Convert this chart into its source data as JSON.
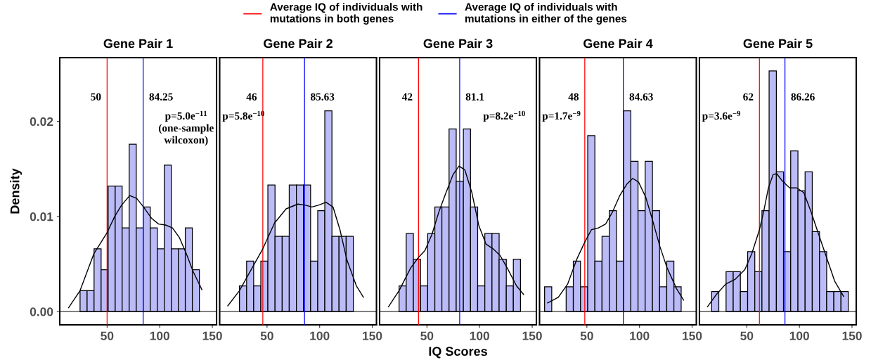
{
  "chart_data": [
    {
      "type": "histogram",
      "title": "Gene Pair 1",
      "ylabel": "Density",
      "legend": "top",
      "color": "#bbbbf7",
      "bins": [
        24.3,
        31.0,
        37.6,
        44.3,
        51.0,
        57.7,
        64.3,
        71.0,
        77.7,
        84.3,
        91.0,
        97.7,
        104.3,
        111.0,
        117.7,
        124.3,
        131.0,
        137.7
      ],
      "values": [
        0.0022,
        0.0022,
        0.0066,
        0.0044,
        0.0132,
        0.0132,
        0.0088,
        0.0176,
        0.0088,
        0.011,
        0.0088,
        0.0066,
        0.0154,
        0.0066,
        0.0066,
        0.0088,
        0.0044
      ],
      "series": [
        {
          "type": "line",
          "color": "#000000",
          "x": [
            13.4,
            24.3,
            37.5,
            50,
            57.2,
            63.8,
            71.5,
            78.1,
            84.6,
            92.3,
            98.9,
            105.5,
            112.1,
            118.6,
            125.2,
            131.8,
            140.1
          ],
          "values": [
            0.0004,
            0.0022,
            0.0061,
            0.0083,
            0.01,
            0.0112,
            0.0122,
            0.0119,
            0.011,
            0.0098,
            0.0092,
            0.0091,
            0.0088,
            0.0078,
            0.0061,
            0.0042,
            0.0023
          ]
        }
      ],
      "ref_lines": [
        {
          "axis": "y",
          "value": 0,
          "color": "#000000"
        },
        {
          "axis": "x",
          "value": 50,
          "color": "#ff0000",
          "label": "Average IQ of individuals with\nmutations in both genes"
        },
        {
          "axis": "x",
          "value": 84.25,
          "color": "#0000ff",
          "label": "Average IQ of individuals with\nmutations in either of the genes"
        }
      ],
      "annotations": [
        "50",
        "84.25",
        "p=5.0e$^{−11}$\n(one-sample\nwilcoxon)"
      ],
      "xlim": [
        5,
        154
      ],
      "ylim": [
        -0.0014,
        0.0267
      ],
      "xticks": [
        50,
        100,
        150
      ],
      "yticks": [
        {
          "value": 0,
          "label": "0.00"
        },
        0.01,
        0.02
      ]
    },
    {
      "type": "histogram",
      "title": "Gene Pair 2",
      "color": "#bbbbf7",
      "tick_labels": "x",
      "bins": [
        23.8,
        30.6,
        37.3,
        44.1,
        50.8,
        57.6,
        64.4,
        71.1,
        77.9,
        84.6,
        91.4,
        98.2,
        104.9,
        111.7,
        118.4,
        125.2,
        132.0
      ],
      "values": [
        0.0027,
        0.0053,
        0.0027,
        0.0053,
        0.0133,
        0.0079,
        0.0079,
        0.0133,
        0.0133,
        0.0133,
        0.0053,
        0.0106,
        0.0211,
        0.0079,
        0.0079,
        0.0079
      ],
      "series": [
        {
          "type": "line",
          "color": "#000000",
          "x": [
            12.7,
            23.8,
            34.9,
            46,
            57.1,
            68.2,
            79.3,
            86,
            92.7,
            99.3,
            106,
            112.7,
            119.3,
            126,
            134.9,
            141.6
          ],
          "values": [
            0.0006,
            0.0022,
            0.0044,
            0.0066,
            0.0093,
            0.0108,
            0.0113,
            0.0112,
            0.011,
            0.0112,
            0.0115,
            0.011,
            0.0086,
            0.0054,
            0.0027,
            0.0015
          ]
        }
      ],
      "ref_lines": [
        {
          "axis": "y",
          "value": 0,
          "color": "#000000"
        },
        {
          "axis": "x",
          "value": 46,
          "color": "#ff0000"
        },
        {
          "axis": "x",
          "value": 85.63,
          "color": "#0000ff"
        }
      ],
      "annotations": [
        "46",
        "85.63",
        "p=5.8e$^{−10}$"
      ],
      "xlim": [
        5,
        154
      ],
      "ylim": [
        -0.0014,
        0.0267
      ],
      "xticks": [
        50,
        100,
        150
      ]
    },
    {
      "type": "histogram",
      "title": "Gene Pair 3",
      "xlabel": "IQ Scores",
      "color": "#bbbbf7",
      "tick_labels": "x",
      "bins": [
        23.5,
        30.3,
        37.1,
        43.9,
        50.7,
        57.5,
        64.2,
        71.0,
        77.8,
        84.6,
        91.4,
        98.2,
        105.0,
        111.8,
        118.6,
        125.4,
        132.1,
        138.9
      ],
      "values": [
        0.0027,
        0.0082,
        0.0055,
        0.0027,
        0.0082,
        0.011,
        0.011,
        0.0192,
        0.0137,
        0.0192,
        0.011,
        0.0027,
        0.0082,
        0.0082,
        0.0055,
        0.0027,
        0.0055
      ],
      "series": [
        {
          "type": "line",
          "color": "#000000",
          "x": [
            13.4,
            23.5,
            34.6,
            42,
            48,
            54.7,
            61.4,
            68.1,
            74.8,
            80.4,
            86,
            92.7,
            99.4,
            106.1,
            112.8,
            119.5,
            126.2,
            135.1,
            141.8
          ],
          "values": [
            0.0005,
            0.0022,
            0.0046,
            0.0057,
            0.0064,
            0.0081,
            0.0105,
            0.0125,
            0.0144,
            0.0153,
            0.0149,
            0.0125,
            0.009,
            0.0071,
            0.0066,
            0.0059,
            0.0046,
            0.0027,
            0.0018
          ]
        }
      ],
      "ref_lines": [
        {
          "axis": "y",
          "value": 0,
          "color": "#000000"
        },
        {
          "axis": "x",
          "value": 42,
          "color": "#ff0000"
        },
        {
          "axis": "x",
          "value": 81.1,
          "color": "#0000ff"
        }
      ],
      "annotations": [
        "42",
        "81.1",
        "p=8.2e$^{−10}$"
      ],
      "xlim": [
        5,
        154
      ],
      "ylim": [
        -0.0014,
        0.0267
      ],
      "xticks": [
        50,
        100,
        150
      ]
    },
    {
      "type": "histogram",
      "title": "Gene Pair 4",
      "color": "#bbbbf7",
      "tick_labels": "x",
      "bins": [
        9.8,
        16.6,
        23.5,
        30.3,
        37.1,
        43.9,
        50.8,
        57.6,
        64.4,
        71.3,
        78.1,
        84.9,
        91.8,
        98.6,
        105.4,
        112.3,
        119.1,
        125.9,
        132.7,
        139.6
      ],
      "values": [
        0.0026,
        0,
        0,
        0.0026,
        0.0053,
        0.0026,
        0.0185,
        0.0053,
        0.0079,
        0.0106,
        0.0053,
        0.0211,
        0.0158,
        0.0106,
        0.0158,
        0.0106,
        0.0026,
        0.0053,
        0.0026
      ],
      "series": [
        {
          "type": "line",
          "color": "#000000",
          "x": [
            12.7,
            22.8,
            31.8,
            40.8,
            48,
            54.3,
            61,
            67.8,
            74.5,
            81.3,
            88,
            93.6,
            99.2,
            106,
            112.7,
            119.5,
            126.2,
            135.2,
            141.9
          ],
          "values": [
            0.0009,
            0.0015,
            0.0029,
            0.0056,
            0.0073,
            0.0086,
            0.0088,
            0.0092,
            0.0105,
            0.0122,
            0.0134,
            0.014,
            0.0136,
            0.012,
            0.0095,
            0.0068,
            0.0046,
            0.0024,
            0.0012
          ]
        }
      ],
      "ref_lines": [
        {
          "axis": "y",
          "value": 0,
          "color": "#000000"
        },
        {
          "axis": "x",
          "value": 48,
          "color": "#ff0000"
        },
        {
          "axis": "x",
          "value": 84.63,
          "color": "#0000ff"
        }
      ],
      "annotations": [
        "48",
        "84.63",
        "p=1.7e$^{−9}$"
      ],
      "xlim": [
        5,
        154
      ],
      "ylim": [
        -0.0014,
        0.0267
      ],
      "xticks": [
        50,
        100,
        150
      ]
    },
    {
      "type": "histogram",
      "title": "Gene Pair 5",
      "color": "#bbbbf7",
      "tick_labels": "x",
      "bins": [
        16.6,
        23.4,
        30.3,
        37.1,
        43.9,
        50.8,
        57.6,
        64.4,
        71.2,
        78.1,
        84.9,
        91.7,
        98.6,
        105.4,
        112.2,
        119.1,
        125.9,
        132.7,
        139.5,
        146.4
      ],
      "values": [
        0.0021,
        0,
        0.0042,
        0.0042,
        0.0021,
        0.0063,
        0.0042,
        0.0106,
        0.0253,
        0.0147,
        0.0063,
        0.0169,
        0.0127,
        0.0147,
        0.0084,
        0.0063,
        0.0021,
        0.0021,
        0.0021
      ],
      "series": [
        {
          "type": "line",
          "color": "#000000",
          "x": [
            12.6,
            21.1,
            30.1,
            39.1,
            48.1,
            54.8,
            62,
            66,
            70.5,
            75,
            78.4,
            84,
            90.8,
            97.5,
            104.2,
            111,
            117.7,
            124.5,
            133.5,
            142
          ],
          "values": [
            0.0005,
            0.0018,
            0.0029,
            0.0034,
            0.0044,
            0.0061,
            0.0086,
            0.0105,
            0.013,
            0.0144,
            0.0145,
            0.0137,
            0.013,
            0.013,
            0.0125,
            0.0105,
            0.0083,
            0.0061,
            0.0032,
            0.0016
          ]
        }
      ],
      "ref_lines": [
        {
          "axis": "y",
          "value": 0,
          "color": "#000000"
        },
        {
          "axis": "x",
          "value": 62,
          "color": "#ff0000"
        },
        {
          "axis": "x",
          "value": 86.26,
          "color": "#0000ff"
        }
      ],
      "annotations": [
        "62",
        "86.26",
        "p=3.6e$^{−9}$"
      ],
      "xlim": [
        5,
        154
      ],
      "ylim": [
        -0.0014,
        0.0267
      ],
      "xticks": [
        50,
        100,
        150
      ]
    }
  ]
}
